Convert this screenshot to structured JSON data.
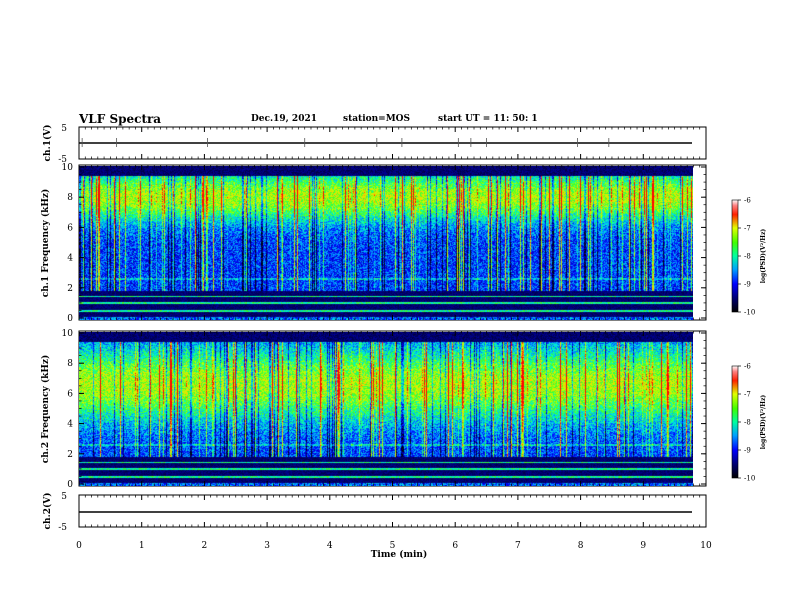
{
  "header": {
    "title": "VLF Spectra",
    "date": "Dec.19, 2021",
    "station": "station=MOS",
    "start": "start UT =  11: 50: 1"
  },
  "chart_data": [
    {
      "type": "line",
      "panel": "ch1-waveform",
      "ylabel": "ch.1(V)",
      "ylim": [
        -5,
        5
      ],
      "yticks": [
        "5",
        "-5"
      ],
      "xlim": [
        0,
        10
      ],
      "series": [
        {
          "values_hint": "near-flat trace at about 0 V across 0-9.8 min"
        }
      ]
    },
    {
      "type": "heatmap",
      "panel": "ch1-spectrogram",
      "ylabel": "ch.1 Frequency (kHz)",
      "ylim": [
        0,
        10
      ],
      "yticks": [
        "0",
        "2",
        "4",
        "6",
        "8",
        "10"
      ],
      "xlim": [
        0,
        10
      ],
      "colorbar": {
        "label": "log(PSD)(V²/Hz)",
        "range": [
          -10,
          -6
        ],
        "ticks": [
          "-6",
          "-7",
          "-8",
          "-9",
          "-10"
        ]
      }
    },
    {
      "type": "heatmap",
      "panel": "ch2-spectrogram",
      "ylabel": "ch.2 Frequency (kHz)",
      "ylim": [
        0,
        10
      ],
      "yticks": [
        "0",
        "2",
        "4",
        "6",
        "8",
        "10"
      ],
      "xlim": [
        0,
        10
      ],
      "colorbar": {
        "label": "log(PSD)(V²/Hz)",
        "range": [
          -10,
          -6
        ],
        "ticks": [
          "-6",
          "-7",
          "-8",
          "-9",
          "-10"
        ]
      }
    },
    {
      "type": "line",
      "panel": "ch2-waveform",
      "ylabel": "ch.2(V)",
      "ylim": [
        -5,
        5
      ],
      "yticks": [
        "5",
        "-5"
      ],
      "xlim": [
        0,
        10
      ],
      "xlabel": "Time (min)",
      "xticks": [
        "0",
        "1",
        "2",
        "3",
        "4",
        "5",
        "6",
        "7",
        "8",
        "9",
        "10"
      ],
      "series": [
        {
          "values_hint": "near-flat trace at about 0 V across 0-9.8 min"
        }
      ]
    }
  ],
  "colors": {
    "colormap": [
      "#00006e",
      "#0000ff",
      "#00a0ff",
      "#00ffe0",
      "#00ff40",
      "#a0ff00",
      "#ffff00",
      "#ff8000",
      "#ff0000"
    ]
  }
}
